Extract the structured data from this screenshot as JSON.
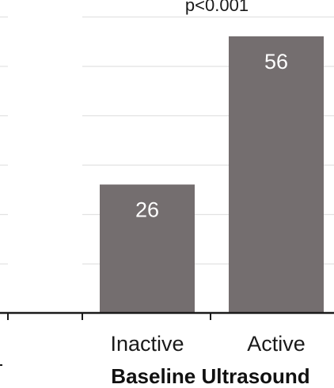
{
  "chart_data": {
    "type": "bar",
    "categories": [
      "Inactive",
      "Active"
    ],
    "values": [
      26,
      56
    ],
    "bar_labels": [
      "26",
      "56"
    ],
    "xlabel": "Baseline Ultrasound",
    "ylabel": "",
    "annotation": "p<0.001",
    "ylim": [
      0,
      60
    ],
    "grid": true,
    "legend": "none",
    "bar_color": "#746e6f",
    "grid_color": "#e2e2e2"
  }
}
